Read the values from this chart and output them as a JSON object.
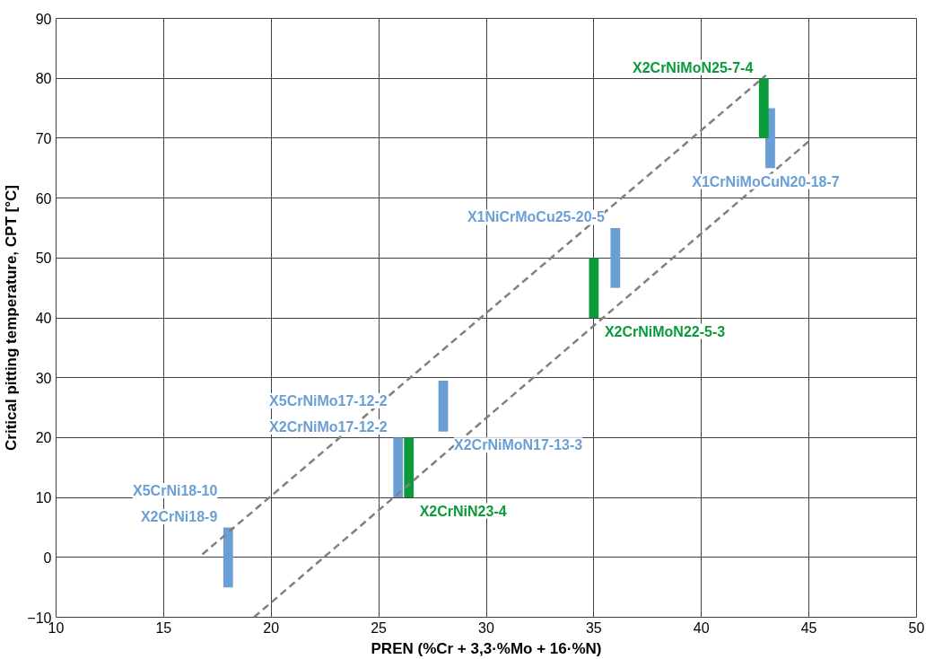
{
  "chart_data": {
    "type": "bar",
    "xlabel": "PREN (%Cr + 3,3·%Mo + 16·%N)",
    "ylabel": "Critical pitting temperature, CPT [°C]",
    "xlim": [
      10,
      50
    ],
    "ylim": [
      -10,
      90
    ],
    "xticks": [
      10,
      15,
      20,
      25,
      30,
      35,
      40,
      45,
      50
    ],
    "yticks": [
      -10,
      0,
      10,
      20,
      30,
      40,
      50,
      60,
      70,
      80,
      90
    ],
    "grid": true,
    "series": [
      {
        "color": "#6a9fd6",
        "x": [
          18.0,
          25.9,
          28.0,
          36.0,
          43.2
        ],
        "base": [
          -5,
          10,
          21,
          45,
          65
        ],
        "values": [
          10,
          10,
          8.5,
          10,
          10
        ]
      },
      {
        "color": "#0a9b3a",
        "x": [
          26.4,
          35.0,
          42.9
        ],
        "base": [
          10,
          40,
          70
        ],
        "values": [
          10,
          10,
          10
        ]
      },
      {
        "type": "line",
        "color": "#808080",
        "line_style": "dashed",
        "marker": "none",
        "x": [
          16.8,
          43.0
        ],
        "values": [
          0.5,
          80.5
        ]
      },
      {
        "type": "line",
        "color": "#808080",
        "line_style": "dashed",
        "marker": "none",
        "x": [
          19.2,
          45.0
        ],
        "values": [
          -10,
          69.5
        ]
      }
    ],
    "annotations": [
      {
        "text": "X5CrNi18-10",
        "x": 18.0,
        "y": 5
      },
      {
        "text": "X2CrNi18-9",
        "x": 18.0,
        "y": 5
      },
      {
        "text": "X5CrNiMo17-12-2",
        "x": 25.9,
        "y": 20
      },
      {
        "text": "X2CrNiMo17-12-2",
        "x": 25.9,
        "y": 20
      },
      {
        "text": "X2CrNiN23-4",
        "x": 26.4,
        "y": 10
      },
      {
        "text": "X2CrNiMoN17-13-3",
        "x": 28.0,
        "y": 21
      },
      {
        "text": "X2CrNiMoN22-5-3",
        "x": 35.0,
        "y": 40
      },
      {
        "text": "X1NiCrMoCu25-20-5",
        "x": 36.0,
        "y": 55
      },
      {
        "text": "X2CrNiMoN25-7-4",
        "x": 42.9,
        "y": 80
      },
      {
        "text": "X1CrNiMoCuN20-18-7",
        "x": 43.2,
        "y": 65
      }
    ]
  }
}
